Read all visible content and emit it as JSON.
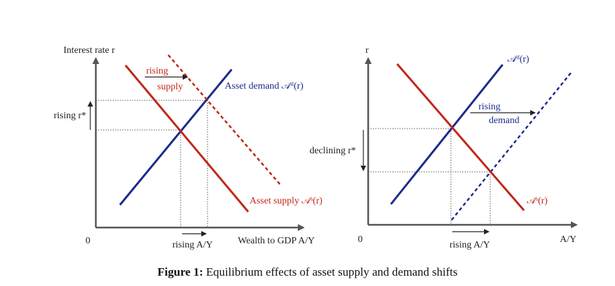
{
  "caption": {
    "label": "Figure 1:",
    "text": " Equilibrium effects of asset supply and demand shifts"
  },
  "colors": {
    "supply": "#c0271a",
    "demand": "#1a2a8c",
    "axis": "#555555",
    "guide": "#555555"
  },
  "left_panel": {
    "y_axis_label": "Interest rate r",
    "origin_label": "0",
    "x_axis_label": "Wealth to GDP A/Y",
    "shift_label_line1": "rising",
    "shift_label_line2": "supply",
    "demand_label": "Asset demand 𝒜ᵈ(r)",
    "supply_label": "Asset supply 𝒜ˢ(r)",
    "rate_change_label": "rising r*",
    "wealth_change_label": "rising A/Y"
  },
  "right_panel": {
    "y_axis_label": "r",
    "origin_label": "0",
    "x_axis_label": "A/Y",
    "shift_label_line1": "rising",
    "shift_label_line2": "demand",
    "demand_label": "𝒜ᵈ(r)",
    "supply_label": "𝒜ˢ(r)",
    "rate_change_label": "declining r*",
    "wealth_change_label": "rising A/Y"
  }
}
